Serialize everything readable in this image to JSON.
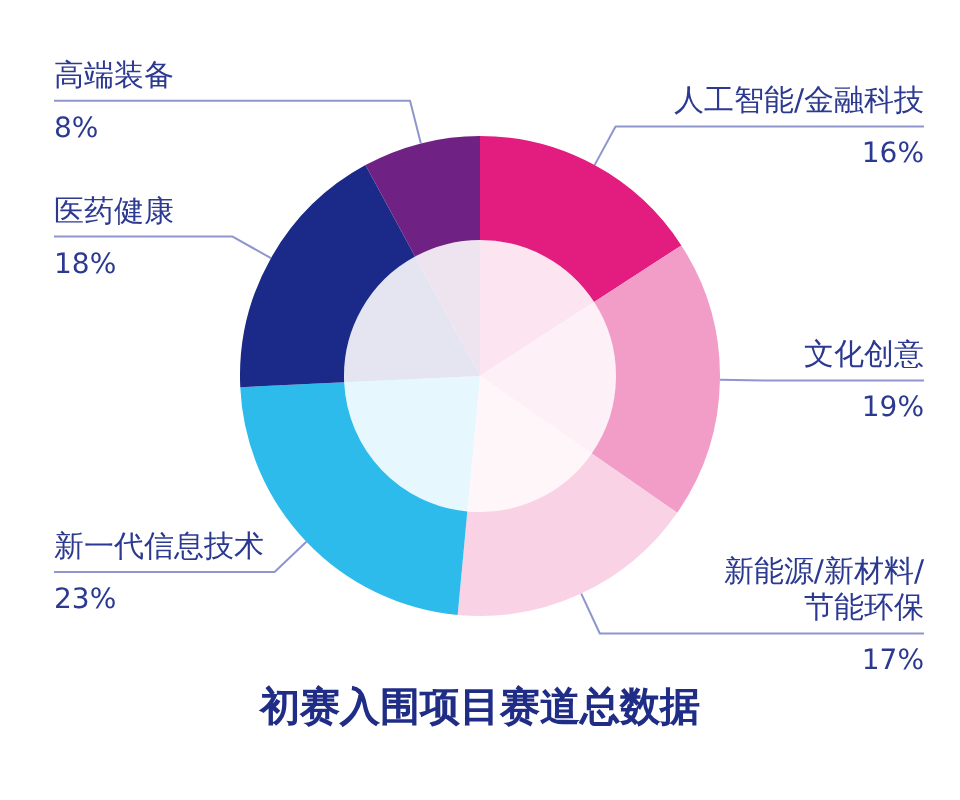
{
  "chart_data": {
    "type": "donut",
    "title": "初赛入围项目赛道总数据",
    "categories": [
      "人工智能/金融科技",
      "文化创意",
      "新能源/新材料/节能环保",
      "新一代信息技术",
      "医药健康",
      "高端装备"
    ],
    "series": [
      {
        "values": [
          16,
          19,
          17,
          23,
          18,
          8
        ],
        "colors": [
          "#e31c7f",
          "#f29cc8",
          "#f9d3e5",
          "#2dbbec",
          "#1b2a88",
          "#6f2284"
        ]
      },
      {
        "values": [
          16,
          19,
          17,
          23,
          18,
          8
        ],
        "colors": [
          "#fce4f0",
          "#fdf0f6",
          "#fff6fa",
          "#e6f7fd",
          "#e4e5f1",
          "#eee4f0"
        ]
      }
    ],
    "value_labels": [
      "16%",
      "19%",
      "17%",
      "23%",
      "18%",
      "8%"
    ],
    "legend": false
  }
}
